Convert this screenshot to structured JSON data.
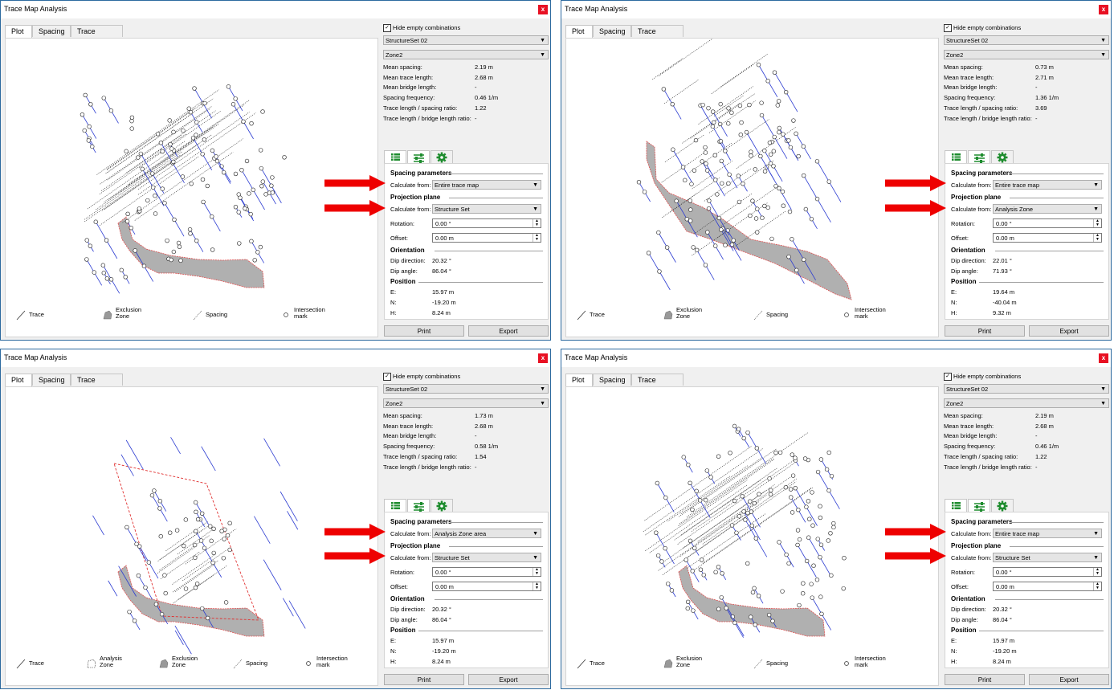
{
  "panels": [
    {
      "title": "Trace Map Analysis",
      "tabs": [
        "Plot",
        "Spacing",
        "Trace Length"
      ],
      "hide_empty_label": "Hide empty combinations",
      "structure_set": "StructureSet 02",
      "zone": "Zone2",
      "stats": [
        {
          "label": "Mean spacing:",
          "value": "2.19 m"
        },
        {
          "label": "Mean trace length:",
          "value": "2.68 m"
        },
        {
          "label": "Mean bridge length:",
          "value": "-"
        },
        {
          "label": "Spacing frequency:",
          "value": "0.46 1/m"
        },
        {
          "label": "Trace length / spacing ratio:",
          "value": "1.22"
        },
        {
          "label": "Trace length / bridge length ratio:",
          "value": "-"
        }
      ],
      "spacing_parameters": "Spacing parameters",
      "calculate_from_label": "Calculate from:",
      "spacing_calc_from": "Entire trace map",
      "projection_plane": "Projection plane",
      "projection_calc_from": "Structure Set",
      "rotation_label": "Rotation:",
      "rotation": "0.00 °",
      "offset_label": "Offset:",
      "offset": "0.00 m",
      "orientation": "Orientation",
      "dip_direction_label": "Dip direction:",
      "dip_direction": "20.32 °",
      "dip_angle_label": "Dip angle:",
      "dip_angle": "86.04 °",
      "position": "Position",
      "e_label": "E:",
      "e": "15.97 m",
      "n_label": "N:",
      "n": "-19.20 m",
      "h_label": "H:",
      "h": "8.24 m",
      "print": "Print",
      "export": "Export",
      "legend": {
        "trace": "Trace",
        "exclusion_zone": "Exclusion Zone",
        "spacing": "Spacing",
        "intersection_mark": "Intersection mark"
      }
    },
    {
      "title": "Trace Map Analysis",
      "tabs": [
        "Plot",
        "Spacing",
        "Trace Length"
      ],
      "hide_empty_label": "Hide empty combinations",
      "structure_set": "StructureSet 02",
      "zone": "Zone2",
      "stats": [
        {
          "label": "Mean spacing:",
          "value": "0.73 m"
        },
        {
          "label": "Mean trace length:",
          "value": "2.71 m"
        },
        {
          "label": "Mean bridge length:",
          "value": "-"
        },
        {
          "label": "Spacing frequency:",
          "value": "1.36 1/m"
        },
        {
          "label": "Trace length / spacing ratio:",
          "value": "3.69"
        },
        {
          "label": "Trace length / bridge length ratio:",
          "value": "-"
        }
      ],
      "spacing_parameters": "Spacing parameters",
      "calculate_from_label": "Calculate from:",
      "spacing_calc_from": "Entire trace map",
      "projection_plane": "Projection plane",
      "projection_calc_from": "Analysis Zone",
      "rotation_label": "Rotation:",
      "rotation": "0.00 °",
      "offset_label": "Offset:",
      "offset": "0.00 m",
      "orientation": "Orientation",
      "dip_direction_label": "Dip direction:",
      "dip_direction": "22.01 °",
      "dip_angle_label": "Dip angle:",
      "dip_angle": "71.93 °",
      "position": "Position",
      "e_label": "E:",
      "e": "19.64 m",
      "n_label": "N:",
      "n": "-40.04 m",
      "h_label": "H:",
      "h": "9.32 m",
      "print": "Print",
      "export": "Export",
      "legend": {
        "trace": "Trace",
        "exclusion_zone": "Exclusion Zone",
        "spacing": "Spacing",
        "intersection_mark": "Intersection mark"
      }
    },
    {
      "title": "Trace Map Analysis",
      "tabs": [
        "Plot",
        "Spacing",
        "Trace Length"
      ],
      "hide_empty_label": "Hide empty combinations",
      "structure_set": "StructureSet 02",
      "zone": "Zone2",
      "stats": [
        {
          "label": "Mean spacing:",
          "value": "1.73 m"
        },
        {
          "label": "Mean trace length:",
          "value": "2.68 m"
        },
        {
          "label": "Mean bridge length:",
          "value": "-"
        },
        {
          "label": "Spacing frequency:",
          "value": "0.58 1/m"
        },
        {
          "label": "Trace length / spacing ratio:",
          "value": "1.54"
        },
        {
          "label": "Trace length / bridge length ratio:",
          "value": "-"
        }
      ],
      "spacing_parameters": "Spacing parameters",
      "calculate_from_label": "Calculate from:",
      "spacing_calc_from": "Analysis Zone area",
      "projection_plane": "Projection plane",
      "projection_calc_from": "Structure Set",
      "rotation_label": "Rotation:",
      "rotation": "0.00 °",
      "offset_label": "Offset:",
      "offset": "0.00 m",
      "orientation": "Orientation",
      "dip_direction_label": "Dip direction:",
      "dip_direction": "20.32 °",
      "dip_angle_label": "Dip angle:",
      "dip_angle": "86.04 °",
      "position": "Position",
      "e_label": "E:",
      "e": "15.97 m",
      "n_label": "N:",
      "n": "-19.20 m",
      "h_label": "H:",
      "h": "8.24 m",
      "print": "Print",
      "export": "Export",
      "legend": {
        "trace": "Trace",
        "analysis_zone": "Analysis Zone",
        "exclusion_zone": "Exclusion Zone",
        "spacing": "Spacing",
        "intersection_mark": "Intersection mark"
      }
    },
    {
      "title": "Trace Map Analysis",
      "tabs": [
        "Plot",
        "Spacing",
        "Trace Length"
      ],
      "hide_empty_label": "Hide empty combinations",
      "structure_set": "StructureSet 02",
      "zone": "Zone2",
      "stats": [
        {
          "label": "Mean spacing:",
          "value": "2.19 m"
        },
        {
          "label": "Mean trace length:",
          "value": "2.68 m"
        },
        {
          "label": "Mean bridge length:",
          "value": "-"
        },
        {
          "label": "Spacing frequency:",
          "value": "0.46 1/m"
        },
        {
          "label": "Trace length / spacing ratio:",
          "value": "1.22"
        },
        {
          "label": "Trace length / bridge length ratio:",
          "value": "-"
        }
      ],
      "spacing_parameters": "Spacing parameters",
      "calculate_from_label": "Calculate from:",
      "spacing_calc_from": "Entire trace map",
      "projection_plane": "Projection plane",
      "projection_calc_from": "Structure Set",
      "rotation_label": "Rotation:",
      "rotation": "0.00 °",
      "offset_label": "Offset:",
      "offset": "0.00 m",
      "orientation": "Orientation",
      "dip_direction_label": "Dip direction:",
      "dip_direction": "20.32 °",
      "dip_angle_label": "Dip angle:",
      "dip_angle": "86.04 °",
      "position": "Position",
      "e_label": "E:",
      "e": "15.97 m",
      "n_label": "N:",
      "n": "-19.20 m",
      "h_label": "H:",
      "h": "8.24 m",
      "print": "Print",
      "export": "Export",
      "legend": {
        "trace": "Trace",
        "exclusion_zone": "Exclusion Zone",
        "spacing": "Spacing",
        "intersection_mark": "Intersection mark"
      }
    }
  ],
  "colors": {
    "trace": "#2b3bd1",
    "exclusion_zone": "#b0b0b0",
    "exclusion_border": "#e05050",
    "analysis_zone": "#e03030",
    "annotation_arrow": "#ee0000"
  },
  "icons": [
    "close-icon",
    "checkbox-checked-icon",
    "dropdown-arrow-icon",
    "table-icon",
    "sliders-icon",
    "gear-icon",
    "spinner-arrows-icon",
    "red-arrow-icon"
  ]
}
